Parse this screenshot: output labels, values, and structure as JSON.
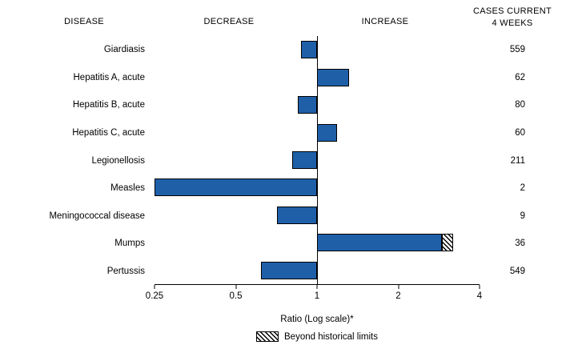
{
  "headers": {
    "disease": "DISEASE",
    "decrease": "DECREASE",
    "increase": "INCREASE",
    "cases_line1": "CASES CURRENT",
    "cases_line2": "4 WEEKS"
  },
  "chart_data": {
    "type": "bar",
    "orientation": "horizontal",
    "scale": "log",
    "baseline": 1,
    "xlim": [
      0.25,
      4
    ],
    "xticks": [
      "0.25",
      "0.5",
      "1",
      "2",
      "4"
    ],
    "xtick_values": [
      0.25,
      0.5,
      1,
      2,
      4
    ],
    "xlabel": "Ratio (Log scale)*",
    "legend": "Beyond historical limits",
    "bar_color": "#1F5FA8",
    "rows": [
      {
        "disease": "Giardiasis",
        "ratio": 0.87,
        "cases": "559"
      },
      {
        "disease": "Hepatitis A, acute",
        "ratio": 1.31,
        "cases": "62"
      },
      {
        "disease": "Hepatitis B, acute",
        "ratio": 0.85,
        "cases": "80"
      },
      {
        "disease": "Hepatitis C, acute",
        "ratio": 1.19,
        "cases": "60"
      },
      {
        "disease": "Legionellosis",
        "ratio": 0.81,
        "cases": "211"
      },
      {
        "disease": "Measles",
        "ratio": 0.25,
        "cases": "2"
      },
      {
        "disease": "Meningococcal disease",
        "ratio": 0.71,
        "cases": "9"
      },
      {
        "disease": "Mumps",
        "ratio": 3.2,
        "cases": "36",
        "beyond_limit_from": 2.9
      },
      {
        "disease": "Pertussis",
        "ratio": 0.62,
        "cases": "549"
      }
    ]
  }
}
